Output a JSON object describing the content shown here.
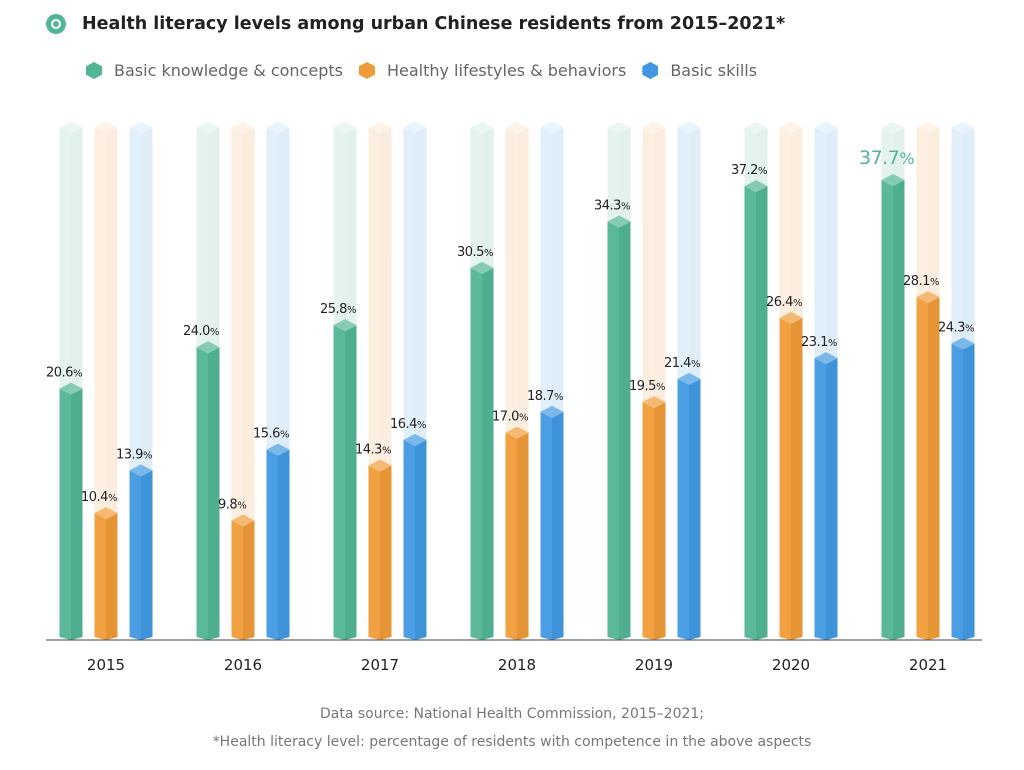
{
  "title": "Health literacy levels among urban Chinese residents from 2015–2021*",
  "source_line1": "Data source: National Health Commission, 2015–2021;",
  "source_line2": "*Health literacy level: percentage of residents with competence in the above aspects",
  "chart_data": {
    "type": "bar",
    "title": "Health literacy levels among urban Chinese residents from 2015–2021*",
    "categories": [
      "2015",
      "2016",
      "2017",
      "2018",
      "2019",
      "2020",
      "2021"
    ],
    "unit": "%",
    "legend_placement": "top-left",
    "grid": false,
    "ylim": [
      0,
      42
    ],
    "series": [
      {
        "name": "Basic knowledge & concepts",
        "color": "#52b595",
        "values": [
          20.6,
          24.0,
          25.8,
          30.5,
          34.3,
          37.2,
          37.7
        ]
      },
      {
        "name": "Healthy lifestyles & behaviors",
        "color": "#f09b38",
        "values": [
          10.4,
          9.8,
          14.3,
          17.0,
          19.5,
          26.4,
          28.1
        ]
      },
      {
        "name": "Basic skills",
        "color": "#4299e1",
        "values": [
          13.9,
          15.6,
          16.4,
          18.7,
          21.4,
          23.1,
          24.3
        ]
      }
    ],
    "labels": [
      [
        "20.6",
        "24.0",
        "25.8",
        "30.5",
        "34.3",
        "37.2",
        "37.7"
      ],
      [
        "10.4",
        "9.8",
        "14.3",
        "17.0",
        "19.5",
        "26.4",
        "28.1"
      ],
      [
        "13.9",
        "15.6",
        "16.4",
        "18.7",
        "21.4",
        "23.1",
        "24.3"
      ]
    ]
  }
}
